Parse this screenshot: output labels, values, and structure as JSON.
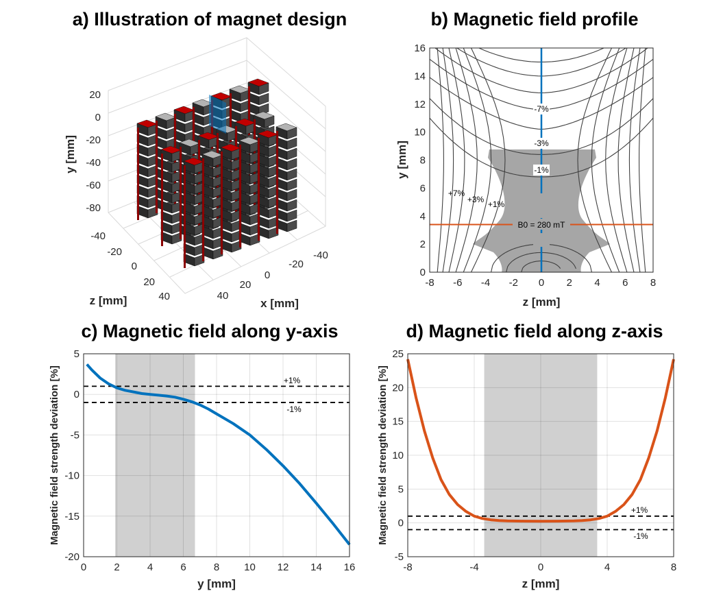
{
  "panels": {
    "a": {
      "title": "a) Illustration of magnet design",
      "ylabel": "y [mm]",
      "zlabel": "z [mm]",
      "xlabel": "x [mm]",
      "y_ticks": [
        "20",
        "0",
        "-20",
        "-40",
        "-60",
        "-80"
      ],
      "z_ticks": [
        "-40",
        "-20",
        "0",
        "20",
        "40"
      ],
      "x_ticks": [
        "-40",
        "-20",
        "0",
        "20",
        "40"
      ]
    },
    "b": {
      "title": "b) Magnetic field profile",
      "xlabel": "z [mm]",
      "ylabel": "y [mm]",
      "b0_label": "B0 = 280 mT",
      "contour_labels": [
        "-7%",
        "-3%",
        "-1%",
        "+7%",
        "+3%",
        "+1%"
      ]
    },
    "c": {
      "title": "c) Magnetic field along y-axis",
      "xlabel": "y [mm]",
      "ylabel": "Magnetic field strength deviation [%]",
      "plus_label": "+1%",
      "minus_label": "-1%"
    },
    "d": {
      "title": "d) Magnetic field along z-axis",
      "xlabel": "z [mm]",
      "ylabel": "Magnetic field strength deviation [%]",
      "plus_label": "+1%",
      "minus_label": "-1%"
    }
  },
  "colors": {
    "blue": "#0072BD",
    "orange": "#D95319",
    "shade": "#a6a6a6",
    "red": "#c00000",
    "gray": "#b3b3b3"
  },
  "chart_data": [
    {
      "type": "contour",
      "title": "b) Magnetic field profile",
      "xlabel": "z [mm]",
      "ylabel": "y [mm]",
      "xlim": [
        -8,
        8
      ],
      "ylim": [
        0,
        16
      ],
      "xticks": [
        -8,
        -6,
        -4,
        -2,
        0,
        2,
        4,
        6,
        8
      ],
      "yticks": [
        0,
        2,
        4,
        6,
        8,
        10,
        12,
        14,
        16
      ],
      "vertical_line_z": 0,
      "horizontal_line_y": 3.4,
      "annotations": [
        "-7%",
        "-3%",
        "-1%",
        "+7%",
        "+3%",
        "+1%",
        "B0 = 280 mT"
      ]
    },
    {
      "type": "line",
      "title": "c) Magnetic field along y-axis",
      "xlabel": "y [mm]",
      "ylabel": "Magnetic field strength deviation [%]",
      "xlim": [
        0,
        16
      ],
      "ylim": [
        -20,
        5
      ],
      "xticks": [
        0,
        2,
        4,
        6,
        8,
        10,
        12,
        14,
        16
      ],
      "yticks": [
        -20,
        -15,
        -10,
        -5,
        0,
        5
      ],
      "shaded_x": [
        1.9,
        6.7
      ],
      "reference_lines": [
        1,
        -1
      ],
      "x": [
        0.2,
        0.5,
        1,
        1.5,
        2,
        2.5,
        3,
        3.5,
        4,
        4.5,
        5,
        5.5,
        6,
        6.5,
        7,
        7.5,
        8,
        9,
        10,
        11,
        12,
        13,
        14,
        15,
        16
      ],
      "y": [
        3.7,
        3.0,
        2.0,
        1.3,
        0.8,
        0.5,
        0.3,
        0.1,
        0.0,
        -0.1,
        -0.2,
        -0.35,
        -0.6,
        -0.9,
        -1.3,
        -1.8,
        -2.4,
        -3.6,
        -5.0,
        -6.8,
        -8.8,
        -11.0,
        -13.4,
        -15.9,
        -18.5
      ]
    },
    {
      "type": "line",
      "title": "d) Magnetic field along z-axis",
      "xlabel": "z [mm]",
      "ylabel": "Magnetic field strength deviation [%]",
      "xlim": [
        -8,
        8
      ],
      "ylim": [
        -5,
        25
      ],
      "xticks": [
        -8,
        -4,
        0,
        4,
        8
      ],
      "yticks": [
        -5,
        0,
        5,
        10,
        15,
        20,
        25
      ],
      "shaded_x": [
        -3.4,
        3.4
      ],
      "reference_lines": [
        1,
        -1
      ],
      "x": [
        -8,
        -7.5,
        -7,
        -6.5,
        -6,
        -5.5,
        -5,
        -4.5,
        -4,
        -3.5,
        -3,
        -2.5,
        -2,
        -1,
        0,
        1,
        2,
        2.5,
        3,
        3.5,
        4,
        4.5,
        5,
        5.5,
        6,
        6.5,
        7,
        7.5,
        8
      ],
      "y": [
        24.2,
        18.5,
        13.6,
        9.6,
        6.4,
        4.2,
        2.7,
        1.7,
        1.0,
        0.65,
        0.45,
        0.35,
        0.3,
        0.26,
        0.25,
        0.26,
        0.3,
        0.35,
        0.45,
        0.65,
        1.0,
        1.7,
        2.7,
        4.2,
        6.4,
        9.6,
        13.6,
        18.5,
        24.2
      ]
    }
  ]
}
